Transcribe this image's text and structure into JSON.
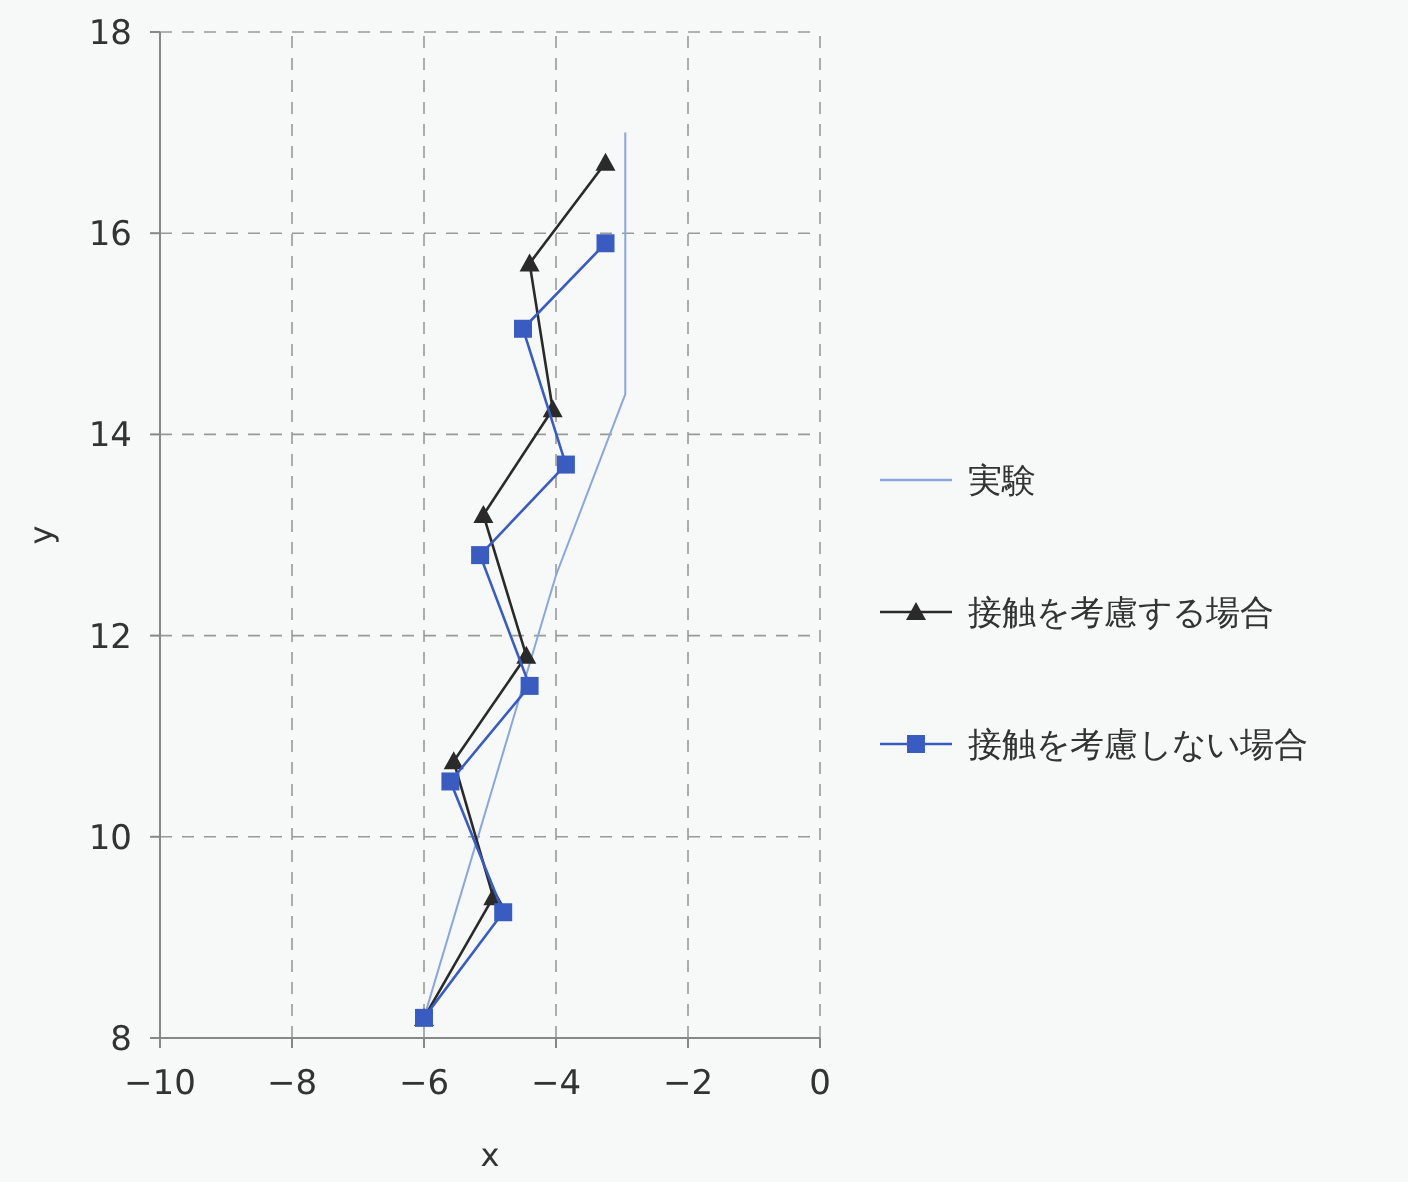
{
  "chart_data": {
    "type": "line",
    "xlabel": "x",
    "ylabel": "y",
    "xlim": [
      -10,
      0
    ],
    "xticks": [
      -10,
      -8,
      -6,
      -4,
      -2,
      0
    ],
    "ylim": [
      8,
      18
    ],
    "yticks": [
      8,
      10,
      12,
      14,
      16,
      18
    ],
    "grid": true,
    "legend": "right",
    "line_style": "solid",
    "series": [
      {
        "name": "実験",
        "color": "#8aa6dc",
        "marker": "none",
        "x": [
          -6,
          -4,
          -2.95,
          -2.95
        ],
        "values": [
          8.2,
          12.6,
          14.4,
          17
        ]
      },
      {
        "name": "接触を考慮する場合",
        "color": "#2a2a2a",
        "marker": "triangle",
        "x": [
          -6,
          -4.95,
          -5.55,
          -4.45,
          -5.1,
          -4.05,
          -4.4,
          -3.25
        ],
        "values": [
          8.2,
          9.4,
          10.75,
          11.8,
          13.2,
          14.25,
          15.7,
          16.7
        ]
      },
      {
        "name": "接触を考慮しない場合",
        "color": "#3a5cc0",
        "marker": "square",
        "x": [
          -6,
          -4.8,
          -5.6,
          -4.4,
          -5.15,
          -3.85,
          -4.5,
          -3.25
        ],
        "values": [
          8.2,
          9.25,
          10.55,
          11.5,
          12.8,
          13.7,
          15.05,
          15.9
        ]
      }
    ]
  }
}
